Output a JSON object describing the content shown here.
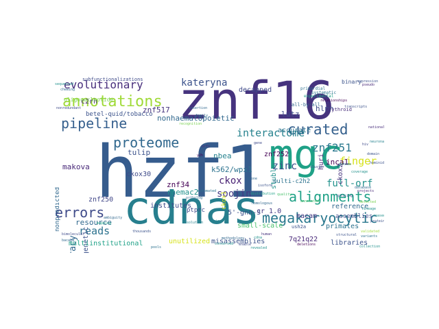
{
  "figure": {
    "type": "word-cloud",
    "background": "#ffffff",
    "palette": [
      "#440154",
      "#46337e",
      "#365c8d",
      "#277f8e",
      "#1fa187",
      "#4ac16d",
      "#a0da39",
      "#d6e21a"
    ]
  },
  "words": [
    {
      "text": "hzf1",
      "color": "#365c8d"
    },
    {
      "text": "znf16",
      "color": "#46337e"
    },
    {
      "text": "cdnas",
      "color": "#277f8e"
    },
    {
      "text": "mgc",
      "color": "#1fa187"
    },
    {
      "text": "alignments",
      "color": "#1fa187"
    },
    {
      "text": "megakaryocytic",
      "color": "#2a788e"
    },
    {
      "text": "annotations",
      "color": "#a0da39"
    },
    {
      "text": "pipeline",
      "color": "#355f8d"
    },
    {
      "text": "proteome",
      "color": "#31688e"
    },
    {
      "text": "errors",
      "color": "#3e4a89"
    },
    {
      "text": "curated",
      "color": "#35608d"
    },
    {
      "text": "evolutionary",
      "color": "#472d7b"
    },
    {
      "text": "kateryna",
      "color": "#3b528b"
    },
    {
      "text": "interactome",
      "color": "#26828e"
    },
    {
      "text": "znf251",
      "color": "#2a788e"
    },
    {
      "text": "soojin",
      "color": "#443983"
    },
    {
      "text": "ckox",
      "color": "#482173"
    },
    {
      "text": "zinc",
      "color": "#3b528b"
    },
    {
      "text": "full-orf",
      "color": "#21918c"
    },
    {
      "text": "finger",
      "color": "#d6e21a"
    },
    {
      "text": "reads",
      "color": "#2c728e"
    },
    {
      "text": "accuracy",
      "color": "#31688e"
    },
    {
      "text": "phylogenetic",
      "color": "#3b528b"
    },
    {
      "text": "nonhaematopoietic",
      "color": "#31688e"
    },
    {
      "text": "znf517",
      "color": "#46337e"
    },
    {
      "text": "tulip",
      "color": "#3b528b"
    },
    {
      "text": "makova",
      "color": "#482878"
    },
    {
      "text": "nbea",
      "color": "#26828e"
    },
    {
      "text": "k562/wpx1",
      "color": "#2c728e"
    },
    {
      "text": "ckox30",
      "color": "#3e4a89"
    },
    {
      "text": "znf34",
      "color": "#440154"
    },
    {
      "text": "znf250",
      "color": "#404688"
    },
    {
      "text": "resource",
      "color": "#31688e"
    },
    {
      "text": "multiinstitutional",
      "color": "#1fa187"
    },
    {
      "text": "unutilized",
      "color": "#d6e21a"
    },
    {
      "text": "misassemblies",
      "color": "#3b528b"
    },
    {
      "text": "institutes",
      "color": "#3e4a89"
    },
    {
      "text": "libraries",
      "color": "#3b528b"
    },
    {
      "text": "7q21q22",
      "color": "#482878"
    },
    {
      "text": "primates",
      "color": "#2c728e"
    },
    {
      "text": "macam",
      "color": "#443983"
    },
    {
      "text": "assemblies",
      "color": "#3e4a89"
    },
    {
      "text": "reference",
      "color": "#31688e"
    },
    {
      "text": "inca1",
      "color": "#440154"
    },
    {
      "text": "hlpn",
      "color": "#3e4a89"
    },
    {
      "text": "huri",
      "color": "#482878"
    },
    {
      "text": "ckox2",
      "color": "#46337e"
    },
    {
      "text": "lutz",
      "color": "#3e4a89"
    },
    {
      "text": "accurate",
      "color": "#2c728e"
    },
    {
      "text": "stubls",
      "color": "#21918c"
    },
    {
      "text": "multi-c2h2",
      "color": "#2c728e"
    },
    {
      "text": "znf252",
      "color": "#440154"
    },
    {
      "text": "5'-gnn-3",
      "color": "#3b528b"
    },
    {
      "text": "cr_1.0",
      "color": "#443983"
    },
    {
      "text": "small-scale",
      "color": "#4ac16d"
    },
    {
      "text": "rhemac2",
      "color": "#21918c"
    },
    {
      "text": "c2rh",
      "color": "#482878"
    },
    {
      "text": "betel-quid/tobacco",
      "color": "#3b528b"
    },
    {
      "text": "decapped",
      "color": "#3e4a89"
    },
    {
      "text": "nonpredicted",
      "color": "#31688e"
    },
    {
      "text": "ckox1",
      "color": "#d6e21a"
    },
    {
      "text": "nsmce2",
      "color": "#3b528b"
    },
    {
      "text": "erythroid",
      "color": "#472d7b"
    },
    {
      "text": "oligonucleotide",
      "color": "#7ad151"
    },
    {
      "text": "subfunctionalizations",
      "color": "#3e4a89"
    },
    {
      "text": "primordial",
      "color": "#2c728e"
    },
    {
      "text": "experimental",
      "color": "#1fa187"
    },
    {
      "text": "all-by-all",
      "color": "#31688e"
    },
    {
      "text": "ush2a",
      "color": "#3b528b"
    },
    {
      "text": "binary",
      "color": "#3b528b"
    },
    {
      "text": "systematic",
      "color": "#2c728e"
    },
    {
      "text": "national",
      "color": "#472d7b"
    },
    {
      "text": "collection",
      "color": "#21918c"
    },
    {
      "text": "sequenced",
      "color": "#21918c"
    },
    {
      "text": "chewing",
      "color": "#31688e"
    },
    {
      "text": "nonredundant",
      "color": "#3e4a89"
    },
    {
      "text": "expanded",
      "color": "#3b528b"
    },
    {
      "text": "distribution",
      "color": "#1fa187"
    },
    {
      "text": "quality",
      "color": "#4ac16d"
    },
    {
      "text": "insertion",
      "color": "#31688e"
    },
    {
      "text": "gene",
      "color": "#3e4a89"
    },
    {
      "text": "primary",
      "color": "#26828e"
    },
    {
      "text": "genome",
      "color": "#2c728e"
    },
    {
      "text": "kingdom",
      "color": "#3b528b"
    },
    {
      "text": "pseudo",
      "color": "#482878"
    },
    {
      "text": "neuronal",
      "color": "#26828e"
    },
    {
      "text": "relationships",
      "color": "#440154"
    },
    {
      "text": "transcripts",
      "color": "#3b528b"
    },
    {
      "text": "database",
      "color": "#31688e"
    },
    {
      "text": "detected",
      "color": "#7ad151"
    },
    {
      "text": "structural",
      "color": "#3b528b"
    },
    {
      "text": "methodology",
      "color": "#31688e"
    },
    {
      "text": "conserved",
      "color": "#21918c"
    },
    {
      "text": "deletions",
      "color": "#440154"
    },
    {
      "text": "thousands",
      "color": "#3b528b"
    },
    {
      "text": "pools",
      "color": "#2c728e"
    },
    {
      "text": "enable",
      "color": "#3e4a89"
    },
    {
      "text": "ambiguity",
      "color": "#31688e"
    },
    {
      "text": "mapping",
      "color": "#1fa187"
    },
    {
      "text": "revealed",
      "color": "#21918c"
    },
    {
      "text": "y2h",
      "color": "#440154"
    },
    {
      "text": "hiv",
      "color": "#3e4a89"
    },
    {
      "text": "domain",
      "color": "#3b528b"
    },
    {
      "text": "ortholog",
      "color": "#31688e"
    },
    {
      "text": "ptprc",
      "color": "#3e4a89"
    },
    {
      "text": "family",
      "color": "#2c728e"
    },
    {
      "text": "coverage",
      "color": "#21918c"
    },
    {
      "text": "splicing",
      "color": "#3b528b"
    },
    {
      "text": "annotated",
      "color": "#4ac16d"
    },
    {
      "text": "human",
      "color": "#46337e"
    },
    {
      "text": "protein",
      "color": "#3b528b"
    },
    {
      "text": "orfs",
      "color": "#482878"
    },
    {
      "text": "clone",
      "color": "#31688e"
    },
    {
      "text": "cdna",
      "color": "#21918c"
    },
    {
      "text": "isoform",
      "color": "#3b528b"
    },
    {
      "text": "automated",
      "color": "#2c728e"
    },
    {
      "text": "resolution",
      "color": "#26828e"
    },
    {
      "text": "recognition",
      "color": "#7ad151"
    },
    {
      "text": "homologous",
      "color": "#31688e"
    },
    {
      "text": "cluster",
      "color": "#3e4a89"
    },
    {
      "text": "validated",
      "color": "#a0da39"
    },
    {
      "text": "hominid",
      "color": "#3b528b"
    },
    {
      "text": "projects",
      "color": "#482878"
    },
    {
      "text": "lineage",
      "color": "#21918c"
    },
    {
      "text": "expression",
      "color": "#3b528b"
    },
    {
      "text": "variants",
      "color": "#2c728e"
    },
    {
      "text": "bacaba",
      "color": "#31688e"
    },
    {
      "text": "bimolecular",
      "color": "#3e4a89"
    },
    {
      "text": "rnaseq",
      "color": "#21918c"
    }
  ]
}
